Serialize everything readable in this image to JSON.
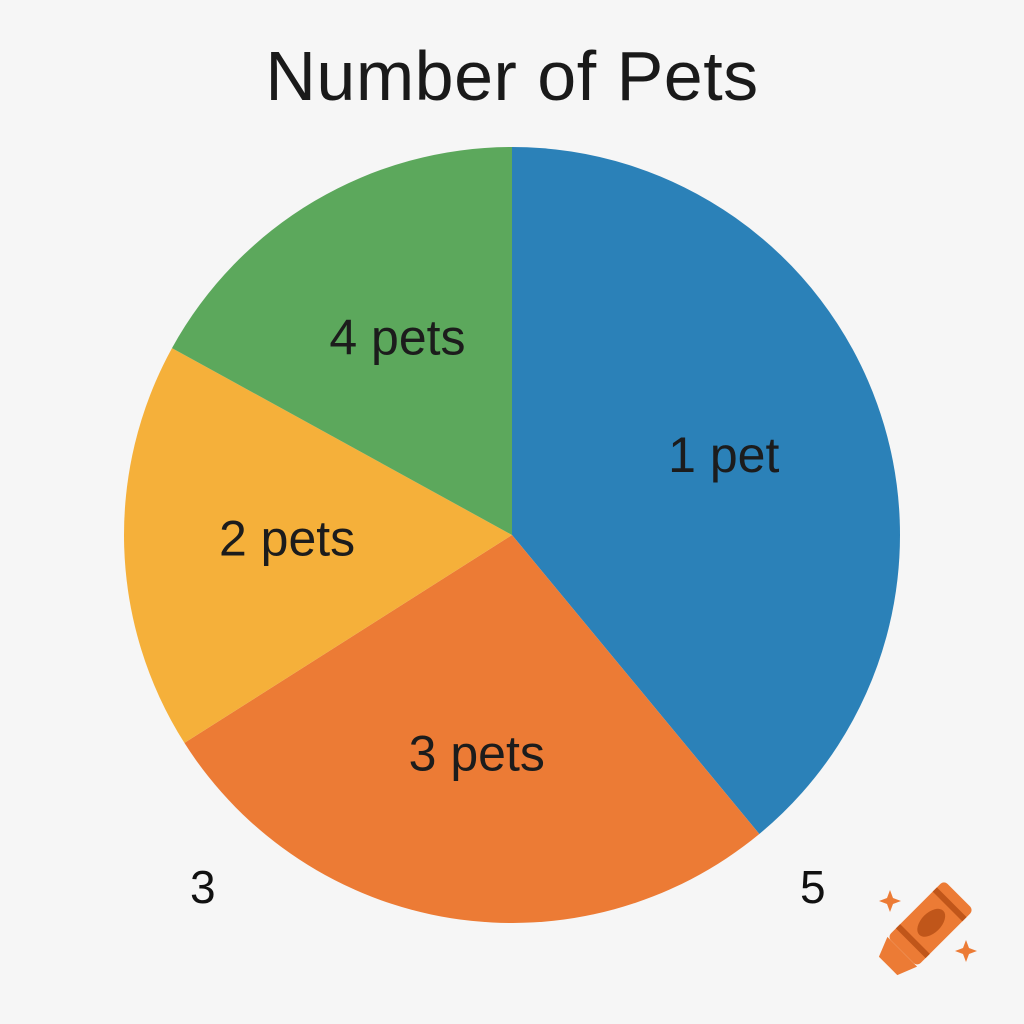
{
  "chart_data": {
    "type": "pie",
    "title": "Number of Pets",
    "categories": [
      "1 pet",
      "3 pets",
      "2 pets",
      "4 pets"
    ],
    "values": [
      39,
      27,
      17,
      17
    ],
    "colors": [
      "#2b81b8",
      "#ec7b35",
      "#f5b03a",
      "#5ca85c"
    ],
    "start_angle_deg": 0,
    "direction": "clockwise",
    "legend": "none",
    "labels_inside": true
  },
  "annotations": {
    "bottom_left": "3",
    "bottom_right": "5"
  },
  "logo": {
    "icon": "crayon-icon",
    "color": "#ec7b35"
  }
}
